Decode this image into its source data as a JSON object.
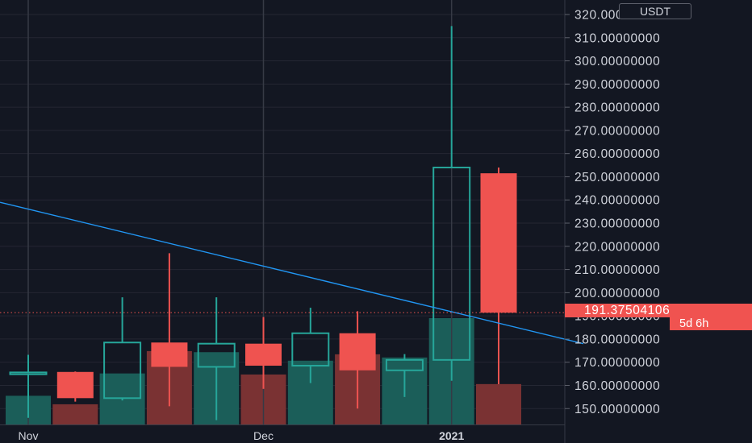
{
  "chart_data": {
    "type": "candlestick",
    "quote_currency": "USDT",
    "y_axis": {
      "range": [
        144,
        322
      ],
      "ticks": [
        {
          "value": 150,
          "label": "150.00000000"
        },
        {
          "value": 160,
          "label": "160.00000000"
        },
        {
          "value": 170,
          "label": "170.00000000"
        },
        {
          "value": 180,
          "label": "180.00000000"
        },
        {
          "value": 190,
          "label": "190.00000000"
        },
        {
          "value": 200,
          "label": "200.00000000"
        },
        {
          "value": 210,
          "label": "210.00000000"
        },
        {
          "value": 220,
          "label": "220.00000000"
        },
        {
          "value": 230,
          "label": "230.00000000"
        },
        {
          "value": 240,
          "label": "240.00000000"
        },
        {
          "value": 250,
          "label": "250.00000000"
        },
        {
          "value": 260,
          "label": "260.00000000"
        },
        {
          "value": 270,
          "label": "270.00000000"
        },
        {
          "value": 280,
          "label": "280.00000000"
        },
        {
          "value": 290,
          "label": "290.00000000"
        },
        {
          "value": 300,
          "label": "300.00000000"
        },
        {
          "value": 310,
          "label": "310.00000000"
        },
        {
          "value": 320,
          "label": "320.00000000"
        }
      ]
    },
    "x_axis": {
      "labels": [
        {
          "label": "Nov",
          "index": 0,
          "bold": false
        },
        {
          "label": "Dec",
          "index": 5,
          "bold": false
        },
        {
          "label": "2021",
          "index": 9,
          "bold": true
        }
      ]
    },
    "candles": [
      {
        "open": 164.8,
        "high": 173.2,
        "low": 146.0,
        "close": 165.6
      },
      {
        "open": 165.8,
        "high": 166.0,
        "low": 153.0,
        "close": 154.5
      },
      {
        "open": 154.5,
        "high": 198.0,
        "low": 153.5,
        "close": 178.5
      },
      {
        "open": 178.5,
        "high": 217.0,
        "low": 151.0,
        "close": 168.0
      },
      {
        "open": 168.0,
        "high": 198.0,
        "low": 145.0,
        "close": 178.0
      },
      {
        "open": 178.0,
        "high": 189.5,
        "low": 158.5,
        "close": 168.5
      },
      {
        "open": 168.5,
        "high": 193.5,
        "low": 161.0,
        "close": 182.5
      },
      {
        "open": 182.5,
        "high": 192.0,
        "low": 150.0,
        "close": 166.5
      },
      {
        "open": 166.5,
        "high": 173.5,
        "low": 155.0,
        "close": 171.0
      },
      {
        "open": 171.0,
        "high": 315.0,
        "low": 162.0,
        "close": 254.0
      },
      {
        "open": 251.5,
        "high": 254.0,
        "low": 160.5,
        "close": 191.375
      }
    ],
    "volume": [
      0.27,
      0.19,
      0.48,
      0.69,
      0.68,
      0.47,
      0.6,
      0.66,
      0.63,
      1.0,
      0.38
    ],
    "trendline": {
      "from": {
        "index": -0.6,
        "value": 239
      },
      "to": {
        "index": 11.8,
        "value": 178
      }
    },
    "last_price": {
      "value": 191.37504106,
      "label": "191.37504106"
    },
    "countdown": "5d 6h",
    "colors": {
      "background": "#131722",
      "up": "#26a69a",
      "down": "#ef5350",
      "up_volume": "#1b5e59",
      "down_volume": "#7a3233",
      "trendline": "#2196f3",
      "grid": "#242733",
      "separator": "#363a45",
      "text": "#d1d4dc"
    }
  }
}
